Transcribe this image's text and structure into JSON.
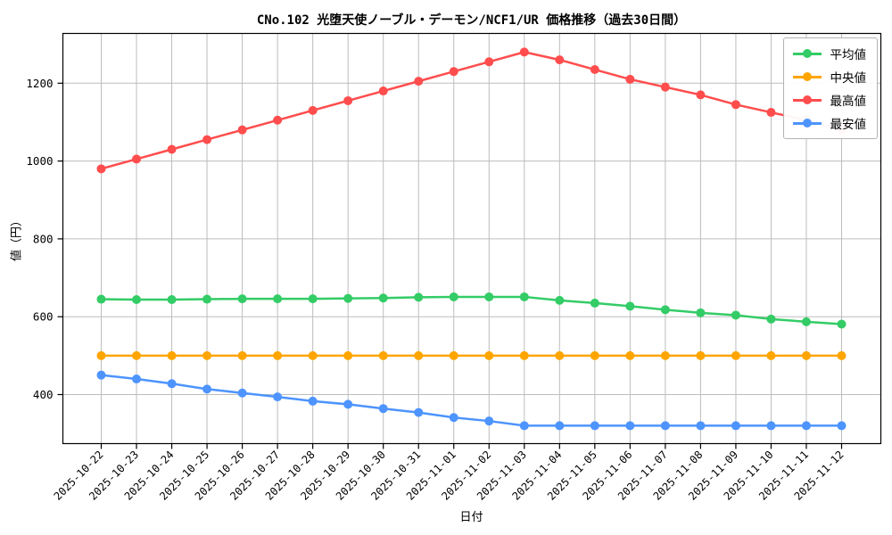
{
  "title": "CNo.102 光堕天使ノーブル・デーモン/NCF1/UR 価格推移（過去30日間）",
  "chart_data": {
    "type": "line",
    "title": "CNo.102 光堕天使ノーブル・デーモン/NCF1/UR 価格推移（過去30日間）",
    "xlabel": "日付",
    "ylabel": "値（円）",
    "grid": true,
    "legend_position": "upper right",
    "ylim": [
      275,
      1330
    ],
    "yticks": [
      400,
      600,
      800,
      1000,
      1200
    ],
    "categories": [
      "2025-10-22",
      "2025-10-23",
      "2025-10-24",
      "2025-10-25",
      "2025-10-26",
      "2025-10-27",
      "2025-10-28",
      "2025-10-29",
      "2025-10-30",
      "2025-10-31",
      "2025-11-01",
      "2025-11-02",
      "2025-11-03",
      "2025-11-04",
      "2025-11-05",
      "2025-11-06",
      "2025-11-07",
      "2025-11-08",
      "2025-11-09",
      "2025-11-10",
      "2025-11-11",
      "2025-11-12"
    ],
    "series": [
      {
        "name": "平均値",
        "color": "#33cc66",
        "values": [
          645,
          644,
          644,
          645,
          646,
          646,
          646,
          647,
          648,
          650,
          651,
          651,
          651,
          642,
          635,
          627,
          618,
          610,
          604,
          594,
          587,
          581
        ]
      },
      {
        "name": "中央値",
        "color": "#ffa500",
        "values": [
          500,
          500,
          500,
          500,
          500,
          500,
          500,
          500,
          500,
          500,
          500,
          500,
          500,
          500,
          500,
          500,
          500,
          500,
          500,
          500,
          500,
          500
        ]
      },
      {
        "name": "最高値",
        "color": "#ff4d4d",
        "values": [
          980,
          1005,
          1030,
          1055,
          1080,
          1105,
          1130,
          1155,
          1180,
          1205,
          1230,
          1255,
          1280,
          1260,
          1235,
          1210,
          1190,
          1170,
          1145,
          1125,
          1105,
          1080
        ]
      },
      {
        "name": "最安値",
        "color": "#4d94ff",
        "values": [
          450,
          440,
          428,
          414,
          404,
          394,
          383,
          375,
          364,
          354,
          341,
          332,
          320,
          320,
          320,
          320,
          320,
          320,
          320,
          320,
          320,
          320
        ]
      }
    ],
    "colors": {
      "grid": "#bdbdbd",
      "frame": "#000000",
      "background": "#ffffff"
    }
  }
}
